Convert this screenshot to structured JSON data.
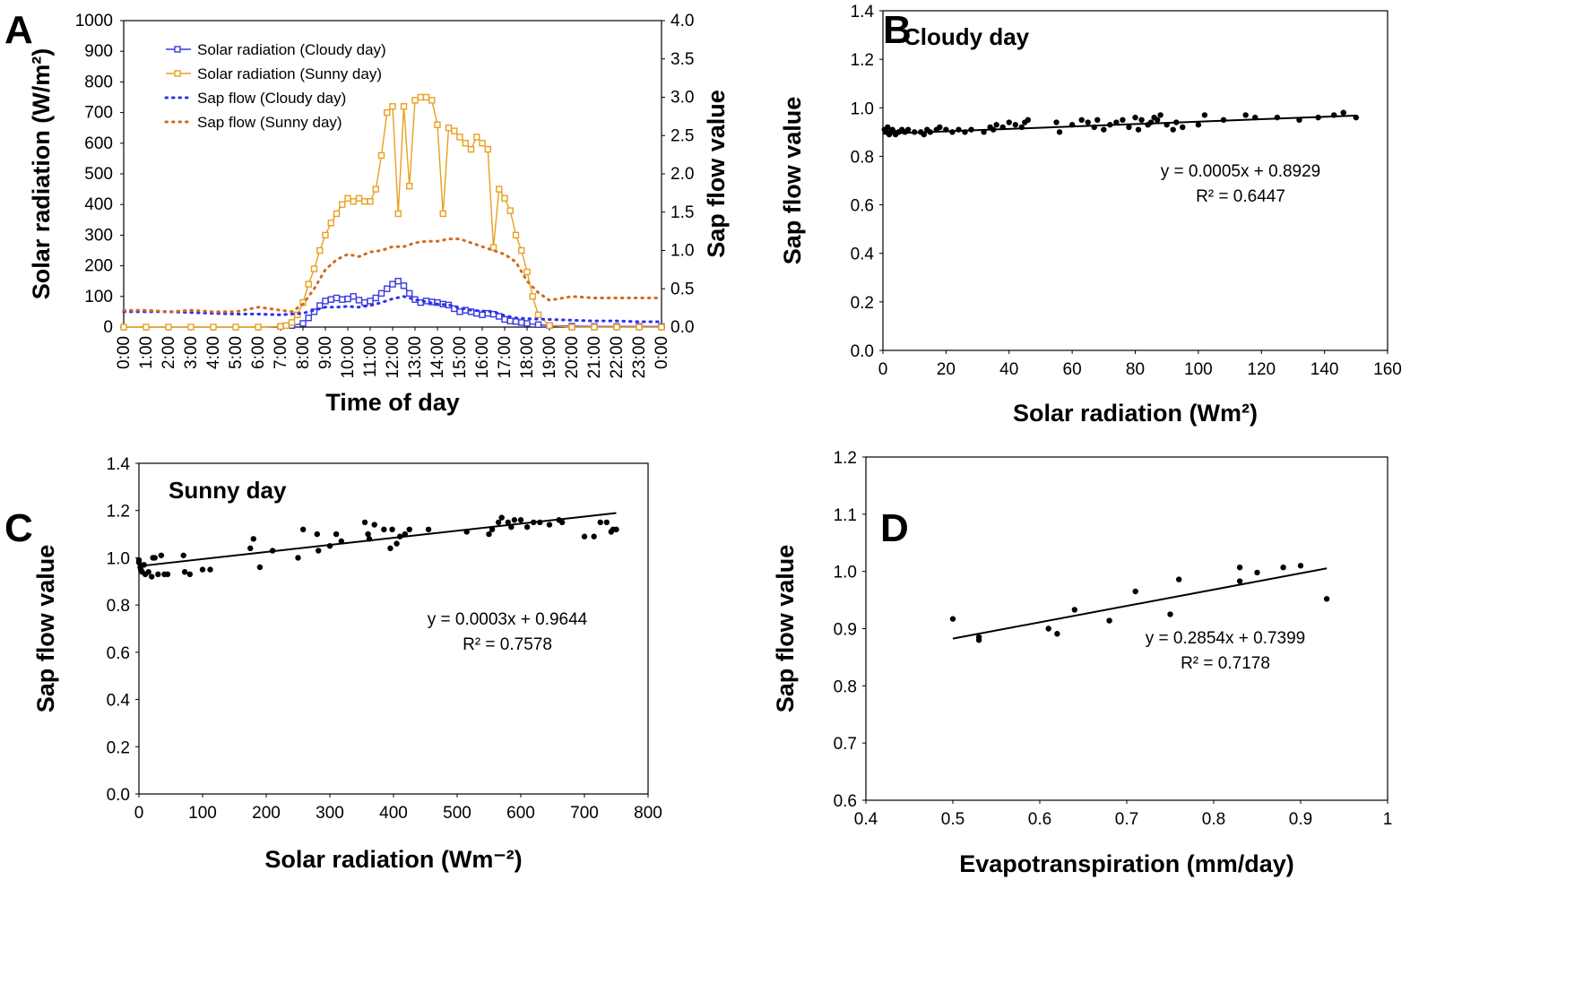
{
  "colors": {
    "cloudy_radiation": "#3a3adf",
    "sunny_radiation": "#e8a020",
    "cloudy_sapflow": "#2d2ff0",
    "sunny_sapflow": "#d2691e",
    "regression_line": "#000000",
    "points": "#000000"
  },
  "chart_data": [
    {
      "panel": "A",
      "type": "line",
      "xlabel": "Time of day",
      "ylabel": "Solar radiation (W/m²)",
      "y2label": "Sap flow value",
      "x_ticks": [
        "0:00",
        "1:00",
        "2:00",
        "3:00",
        "4:00",
        "5:00",
        "6:00",
        "7:00",
        "8:00",
        "9:00",
        "10:00",
        "11:00",
        "12:00",
        "13:00",
        "14:00",
        "15:00",
        "16:00",
        "17:00",
        "18:00",
        "19:00",
        "20:00",
        "21:00",
        "22:00",
        "23:00",
        "0:00"
      ],
      "y_ticks": [
        "0",
        "100",
        "200",
        "300",
        "400",
        "500",
        "600",
        "700",
        "800",
        "900",
        "1000"
      ],
      "y2_ticks": [
        "0.0",
        "0.5",
        "1.0",
        "1.5",
        "2.0",
        "2.5",
        "3.0",
        "3.5",
        "4.0"
      ],
      "ylim": [
        0,
        1000
      ],
      "y2lim": [
        0,
        4
      ],
      "legend_position": "top-left",
      "series": [
        {
          "name": "Solar radiation (Cloudy day)",
          "axis": "left",
          "style": "line-square",
          "color_key": "cloudy_radiation",
          "x": [
            7,
            7.5,
            8,
            8.25,
            8.5,
            8.75,
            9,
            9.25,
            9.5,
            9.75,
            10,
            10.25,
            10.5,
            10.75,
            11,
            11.25,
            11.5,
            11.75,
            12,
            12.25,
            12.5,
            12.75,
            13,
            13.25,
            13.5,
            13.75,
            14,
            14.25,
            14.5,
            14.75,
            15,
            15.25,
            15.5,
            15.75,
            16,
            16.25,
            16.5,
            16.75,
            17,
            17.25,
            17.5,
            17.75,
            18,
            18.5,
            19,
            20,
            21,
            22,
            23,
            24
          ],
          "values": [
            2,
            5,
            12,
            30,
            50,
            70,
            85,
            90,
            95,
            90,
            92,
            100,
            88,
            80,
            85,
            95,
            110,
            125,
            140,
            150,
            135,
            110,
            90,
            80,
            85,
            82,
            80,
            75,
            72,
            60,
            50,
            55,
            50,
            45,
            40,
            45,
            42,
            35,
            25,
            20,
            18,
            15,
            12,
            8,
            5,
            3,
            2,
            2,
            2,
            2
          ]
        },
        {
          "name": "Solar radiation (Sunny day)",
          "axis": "left",
          "style": "line-square",
          "color_key": "sunny_radiation",
          "x": [
            0,
            1,
            2,
            3,
            4,
            5,
            6,
            7,
            7.25,
            7.5,
            7.75,
            8,
            8.25,
            8.5,
            8.75,
            9,
            9.25,
            9.5,
            9.75,
            10,
            10.25,
            10.5,
            10.75,
            11,
            11.25,
            11.5,
            11.75,
            12,
            12.25,
            12.5,
            12.75,
            13,
            13.25,
            13.5,
            13.75,
            14,
            14.25,
            14.5,
            14.75,
            15,
            15.25,
            15.5,
            15.75,
            16,
            16.25,
            16.5,
            16.75,
            17,
            17.25,
            17.5,
            17.75,
            18,
            18.25,
            18.5,
            19,
            20,
            21,
            22,
            23,
            24
          ],
          "values": [
            0,
            0,
            0,
            0,
            0,
            0,
            0,
            2,
            5,
            15,
            40,
            80,
            140,
            190,
            250,
            300,
            340,
            370,
            400,
            420,
            410,
            420,
            410,
            410,
            450,
            560,
            700,
            720,
            370,
            720,
            460,
            740,
            750,
            750,
            740,
            660,
            370,
            650,
            640,
            620,
            600,
            580,
            620,
            600,
            580,
            260,
            450,
            420,
            380,
            300,
            250,
            180,
            100,
            40,
            5,
            0,
            0,
            0,
            0,
            0
          ]
        },
        {
          "name": "Sap flow (Cloudy day)",
          "axis": "right",
          "style": "dotted",
          "color_key": "cloudy_sapflow",
          "x": [
            0,
            1,
            2,
            3,
            4,
            5,
            6,
            7,
            8,
            8.5,
            9,
            9.5,
            10,
            10.5,
            11,
            11.5,
            12,
            12.5,
            13,
            13.5,
            14,
            14.5,
            15,
            15.5,
            16,
            16.5,
            17,
            17.5,
            18,
            19,
            20,
            21,
            22,
            23,
            24
          ],
          "values": [
            0.2,
            0.2,
            0.2,
            0.19,
            0.18,
            0.17,
            0.17,
            0.16,
            0.18,
            0.22,
            0.26,
            0.26,
            0.27,
            0.26,
            0.28,
            0.32,
            0.37,
            0.4,
            0.36,
            0.33,
            0.3,
            0.29,
            0.25,
            0.22,
            0.21,
            0.2,
            0.15,
            0.12,
            0.11,
            0.1,
            0.09,
            0.08,
            0.08,
            0.07,
            0.07
          ]
        },
        {
          "name": "Sap flow (Sunny day)",
          "axis": "right",
          "style": "dotted",
          "color_key": "sunny_sapflow",
          "x": [
            0,
            1,
            2,
            3,
            4,
            5,
            6,
            7,
            7.5,
            8,
            8.5,
            9,
            9.5,
            10,
            10.5,
            11,
            11.5,
            12,
            12.5,
            13,
            13.5,
            14,
            14.5,
            15,
            15.5,
            16,
            16.5,
            17,
            17.5,
            18,
            18.5,
            19,
            20,
            21,
            22,
            23,
            24
          ],
          "values": [
            0.22,
            0.22,
            0.2,
            0.22,
            0.2,
            0.2,
            0.26,
            0.22,
            0.2,
            0.3,
            0.5,
            0.75,
            0.88,
            0.95,
            0.92,
            0.98,
            1.0,
            1.05,
            1.05,
            1.1,
            1.12,
            1.12,
            1.15,
            1.15,
            1.1,
            1.05,
            1.0,
            0.95,
            0.85,
            0.6,
            0.45,
            0.35,
            0.4,
            0.38,
            0.38,
            0.38,
            0.38
          ]
        }
      ]
    },
    {
      "panel": "B",
      "type": "scatter",
      "title": "Cloudy day",
      "xlabel": "Solar radiation (Wm²)",
      "ylabel": "Sap flow value",
      "xlim": [
        0,
        160
      ],
      "ylim": [
        0,
        1.4
      ],
      "x_ticks": [
        "0",
        "20",
        "40",
        "60",
        "80",
        "100",
        "120",
        "140",
        "160"
      ],
      "y_ticks": [
        "0.0",
        "0.2",
        "0.4",
        "0.6",
        "0.8",
        "1.0",
        "1.2",
        "1.4"
      ],
      "equation": "y = 0.0005x + 0.8929",
      "r2": "R² = 0.6447",
      "trendline": {
        "slope": 0.0005,
        "intercept": 0.8929,
        "x_range": [
          0,
          150
        ]
      },
      "points": [
        [
          0.5,
          0.91
        ],
        [
          1,
          0.9
        ],
        [
          1.5,
          0.92
        ],
        [
          2,
          0.89
        ],
        [
          2.5,
          0.9
        ],
        [
          3,
          0.91
        ],
        [
          3.5,
          0.9
        ],
        [
          4,
          0.89
        ],
        [
          5,
          0.9
        ],
        [
          6,
          0.91
        ],
        [
          7,
          0.9
        ],
        [
          8,
          0.91
        ],
        [
          10,
          0.9
        ],
        [
          12,
          0.9
        ],
        [
          13,
          0.89
        ],
        [
          14,
          0.91
        ],
        [
          15,
          0.9
        ],
        [
          17,
          0.91
        ],
        [
          18,
          0.92
        ],
        [
          20,
          0.91
        ],
        [
          22,
          0.9
        ],
        [
          24,
          0.91
        ],
        [
          26,
          0.9
        ],
        [
          28,
          0.91
        ],
        [
          32,
          0.9
        ],
        [
          34,
          0.92
        ],
        [
          35,
          0.91
        ],
        [
          36,
          0.93
        ],
        [
          38,
          0.92
        ],
        [
          40,
          0.94
        ],
        [
          42,
          0.93
        ],
        [
          44,
          0.92
        ],
        [
          45,
          0.94
        ],
        [
          46,
          0.95
        ],
        [
          55,
          0.94
        ],
        [
          56,
          0.9
        ],
        [
          60,
          0.93
        ],
        [
          63,
          0.95
        ],
        [
          65,
          0.94
        ],
        [
          67,
          0.92
        ],
        [
          68,
          0.95
        ],
        [
          70,
          0.91
        ],
        [
          72,
          0.93
        ],
        [
          74,
          0.94
        ],
        [
          76,
          0.95
        ],
        [
          78,
          0.92
        ],
        [
          80,
          0.96
        ],
        [
          81,
          0.91
        ],
        [
          82,
          0.95
        ],
        [
          84,
          0.93
        ],
        [
          85,
          0.94
        ],
        [
          86,
          0.96
        ],
        [
          87,
          0.95
        ],
        [
          88,
          0.97
        ],
        [
          90,
          0.93
        ],
        [
          92,
          0.91
        ],
        [
          93,
          0.94
        ],
        [
          95,
          0.92
        ],
        [
          100,
          0.93
        ],
        [
          102,
          0.97
        ],
        [
          108,
          0.95
        ],
        [
          115,
          0.97
        ],
        [
          118,
          0.96
        ],
        [
          125,
          0.96
        ],
        [
          132,
          0.95
        ],
        [
          138,
          0.96
        ],
        [
          143,
          0.97
        ],
        [
          146,
          0.98
        ],
        [
          150,
          0.96
        ]
      ]
    },
    {
      "panel": "C",
      "type": "scatter",
      "title": "Sunny day",
      "xlabel": "Solar radiation (Wm⁻²)",
      "ylabel": "Sap flow value",
      "xlim": [
        0,
        800
      ],
      "ylim": [
        0,
        1.4
      ],
      "x_ticks": [
        "0",
        "100",
        "200",
        "300",
        "400",
        "500",
        "600",
        "700",
        "800"
      ],
      "y_ticks": [
        "0.0",
        "0.2",
        "0.4",
        "0.6",
        "0.8",
        "1.0",
        "1.2",
        "1.4"
      ],
      "equation": "y = 0.0003x + 0.9644",
      "r2": "R² = 0.7578",
      "trendline": {
        "slope": 0.0003,
        "intercept": 0.9644,
        "x_range": [
          0,
          750
        ]
      },
      "points": [
        [
          0,
          0.99
        ],
        [
          0,
          0.98
        ],
        [
          2,
          0.96
        ],
        [
          3,
          0.95
        ],
        [
          5,
          0.94
        ],
        [
          8,
          0.97
        ],
        [
          10,
          0.93
        ],
        [
          15,
          0.94
        ],
        [
          20,
          0.92
        ],
        [
          22,
          1.0
        ],
        [
          25,
          1.0
        ],
        [
          30,
          0.93
        ],
        [
          35,
          1.01
        ],
        [
          40,
          0.93
        ],
        [
          45,
          0.93
        ],
        [
          70,
          1.01
        ],
        [
          72,
          0.94
        ],
        [
          80,
          0.93
        ],
        [
          100,
          0.95
        ],
        [
          112,
          0.95
        ],
        [
          175,
          1.04
        ],
        [
          180,
          1.08
        ],
        [
          190,
          0.96
        ],
        [
          210,
          1.03
        ],
        [
          250,
          1.0
        ],
        [
          258,
          1.12
        ],
        [
          280,
          1.1
        ],
        [
          282,
          1.03
        ],
        [
          300,
          1.05
        ],
        [
          310,
          1.1
        ],
        [
          318,
          1.07
        ],
        [
          355,
          1.15
        ],
        [
          360,
          1.1
        ],
        [
          362,
          1.08
        ],
        [
          370,
          1.14
        ],
        [
          385,
          1.12
        ],
        [
          395,
          1.04
        ],
        [
          398,
          1.12
        ],
        [
          405,
          1.06
        ],
        [
          410,
          1.09
        ],
        [
          418,
          1.1
        ],
        [
          425,
          1.12
        ],
        [
          455,
          1.12
        ],
        [
          515,
          1.11
        ],
        [
          550,
          1.1
        ],
        [
          555,
          1.12
        ],
        [
          565,
          1.15
        ],
        [
          570,
          1.17
        ],
        [
          580,
          1.15
        ],
        [
          585,
          1.13
        ],
        [
          590,
          1.16
        ],
        [
          600,
          1.16
        ],
        [
          610,
          1.13
        ],
        [
          620,
          1.15
        ],
        [
          630,
          1.15
        ],
        [
          645,
          1.14
        ],
        [
          660,
          1.16
        ],
        [
          665,
          1.15
        ],
        [
          700,
          1.09
        ],
        [
          715,
          1.09
        ],
        [
          725,
          1.15
        ],
        [
          735,
          1.15
        ],
        [
          742,
          1.11
        ],
        [
          745,
          1.12
        ],
        [
          750,
          1.12
        ]
      ]
    },
    {
      "panel": "D",
      "type": "scatter",
      "xlabel": "Evapotranspiration (mm/day)",
      "ylabel": "Sap flow value",
      "xlim": [
        0.4,
        1.0
      ],
      "ylim": [
        0.6,
        1.2
      ],
      "x_ticks": [
        "0.4",
        "0.5",
        "0.6",
        "0.7",
        "0.8",
        "0.9",
        "1"
      ],
      "y_ticks": [
        "0.6",
        "0.7",
        "0.8",
        "0.9",
        "1.0",
        "1.1",
        "1.2"
      ],
      "equation": "y = 0.2854x + 0.7399",
      "r2": "R² = 0.7178",
      "trendline": {
        "slope": 0.2854,
        "intercept": 0.7399,
        "x_range": [
          0.5,
          0.93
        ]
      },
      "points": [
        [
          0.5,
          0.917
        ],
        [
          0.53,
          0.885
        ],
        [
          0.53,
          0.88
        ],
        [
          0.61,
          0.9
        ],
        [
          0.62,
          0.891
        ],
        [
          0.64,
          0.933
        ],
        [
          0.68,
          0.914
        ],
        [
          0.71,
          0.965
        ],
        [
          0.75,
          0.925
        ],
        [
          0.76,
          0.986
        ],
        [
          0.83,
          1.007
        ],
        [
          0.83,
          0.983
        ],
        [
          0.85,
          0.998
        ],
        [
          0.88,
          1.007
        ],
        [
          0.9,
          1.01
        ],
        [
          0.93,
          0.952
        ]
      ]
    }
  ],
  "panel_labels": [
    "A",
    "B",
    "C",
    "D"
  ]
}
